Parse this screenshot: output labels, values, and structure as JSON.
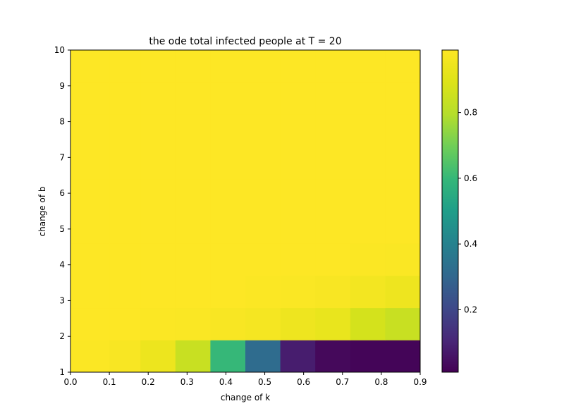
{
  "chart_data": {
    "type": "heatmap",
    "title": "the ode total infected people at T = 20",
    "xlabel": "change of k",
    "ylabel": "change of b",
    "xlim": [
      0,
      0.9
    ],
    "ylim": [
      1,
      10
    ],
    "x_ticks": [
      "0.0",
      "0.1",
      "0.2",
      "0.3",
      "0.4",
      "0.5",
      "0.6",
      "0.7",
      "0.8",
      "0.9"
    ],
    "y_ticks": [
      "1",
      "2",
      "3",
      "4",
      "5",
      "6",
      "7",
      "8",
      "9",
      "10"
    ],
    "colorscale": "viridis",
    "colorbar": {
      "range": [
        0.01,
        0.99
      ],
      "ticks": [
        "0.2",
        "0.4",
        "0.6",
        "0.8"
      ],
      "tick_values": [
        0.2,
        0.4,
        0.6,
        0.8
      ]
    },
    "x_edges": [
      0,
      0.1,
      0.18,
      0.27,
      0.36,
      0.45,
      0.54,
      0.63,
      0.72,
      0.81,
      0.9
    ],
    "y_edges": [
      1,
      1.9,
      2.8,
      3.7,
      4.6,
      5.5,
      6.4,
      7.3,
      8.2,
      9.1,
      10
    ],
    "z": [
      [
        0.985,
        0.975,
        0.94,
        0.84,
        0.6,
        0.32,
        0.08,
        0.03,
        0.02,
        0.02
      ],
      [
        0.99,
        0.99,
        0.985,
        0.98,
        0.975,
        0.965,
        0.945,
        0.93,
        0.87,
        0.84
      ],
      [
        0.99,
        0.99,
        0.99,
        0.99,
        0.99,
        0.985,
        0.98,
        0.975,
        0.96,
        0.945
      ],
      [
        0.99,
        0.99,
        0.99,
        0.99,
        0.99,
        0.99,
        0.99,
        0.99,
        0.985,
        0.98
      ],
      [
        0.99,
        0.99,
        0.99,
        0.99,
        0.99,
        0.99,
        0.99,
        0.99,
        0.99,
        0.99
      ],
      [
        0.99,
        0.99,
        0.99,
        0.99,
        0.99,
        0.99,
        0.99,
        0.99,
        0.99,
        0.99
      ],
      [
        0.99,
        0.99,
        0.99,
        0.99,
        0.99,
        0.99,
        0.99,
        0.99,
        0.99,
        0.99
      ],
      [
        0.99,
        0.99,
        0.99,
        0.99,
        0.99,
        0.99,
        0.99,
        0.99,
        0.99,
        0.99
      ],
      [
        0.99,
        0.99,
        0.99,
        0.99,
        0.99,
        0.99,
        0.99,
        0.99,
        0.99,
        0.99
      ],
      [
        0.99,
        0.99,
        0.99,
        0.99,
        0.99,
        0.99,
        0.99,
        0.99,
        0.99,
        0.99
      ]
    ]
  }
}
